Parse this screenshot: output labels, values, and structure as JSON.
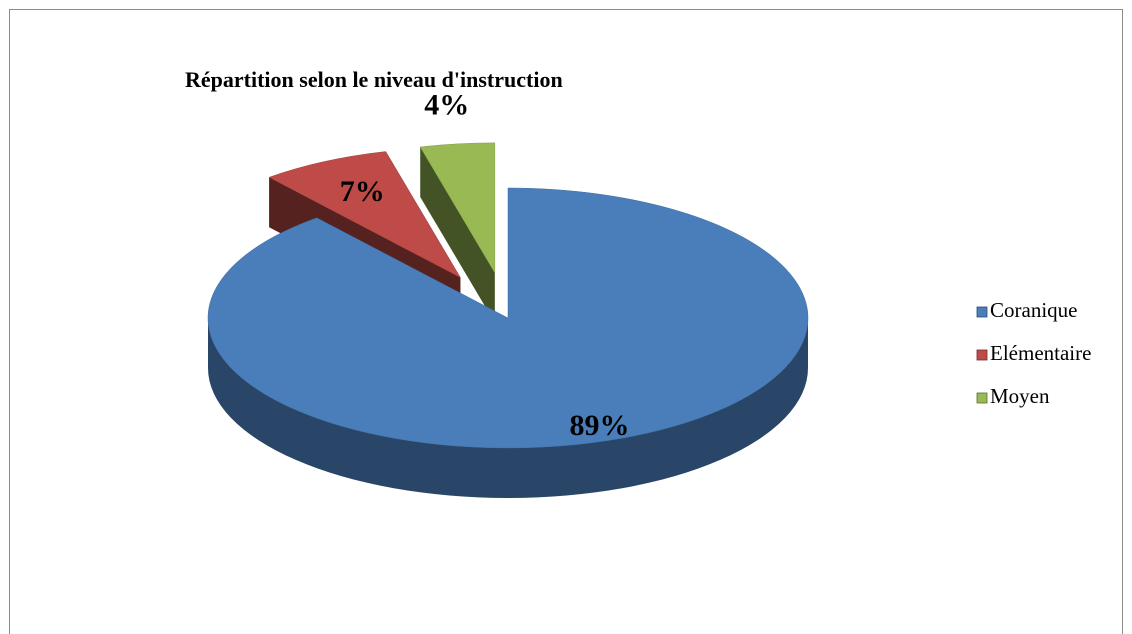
{
  "chart_data": {
    "type": "pie",
    "title": "Répartition selon le niveau d'instruction",
    "categories": [
      "Coranique",
      "Elémentaire",
      "Moyen"
    ],
    "values": [
      89,
      7,
      4
    ],
    "value_labels": [
      "89%",
      "7%",
      "4%"
    ],
    "colors": [
      "#4a7ebb",
      "#be4b48",
      "#98b954"
    ],
    "legend": "right"
  }
}
